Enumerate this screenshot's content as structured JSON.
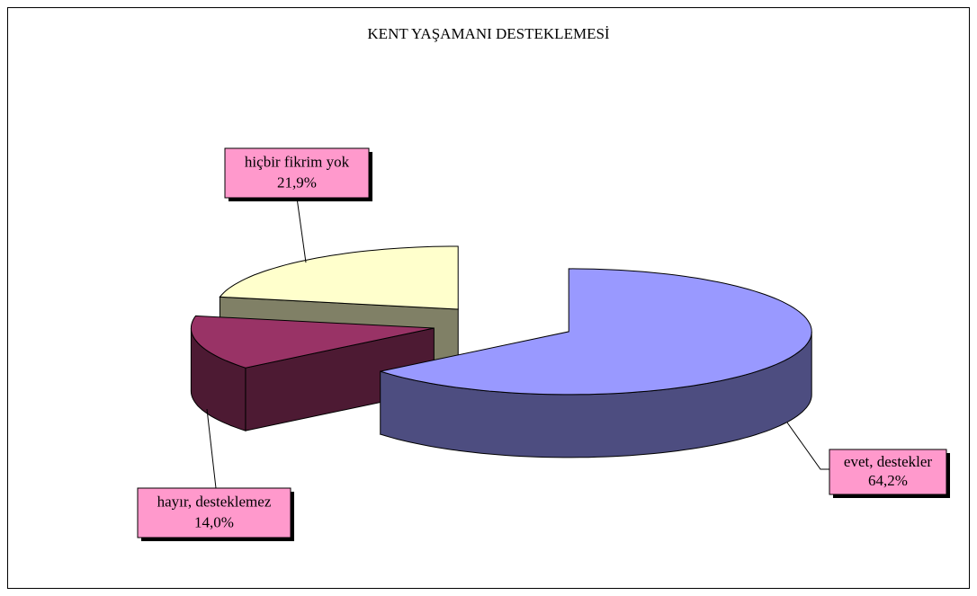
{
  "chart_data": {
    "type": "pie",
    "title": "KENT YAŞAMANI DESTEKLEMESİ",
    "categories": [
      "evet, destekler",
      "hayır, desteklemez",
      "hiçbir fikrim yok"
    ],
    "values": [
      64.2,
      14.0,
      21.9
    ],
    "value_labels": [
      "64,2%",
      "14,0%",
      "21,9%"
    ],
    "colors": [
      "#9999ff",
      "#993366",
      "#ffffcc"
    ],
    "side_colors": [
      "#4d4d80",
      "#4d1a33",
      "#808066"
    ],
    "label_color": "#ff99cc"
  }
}
